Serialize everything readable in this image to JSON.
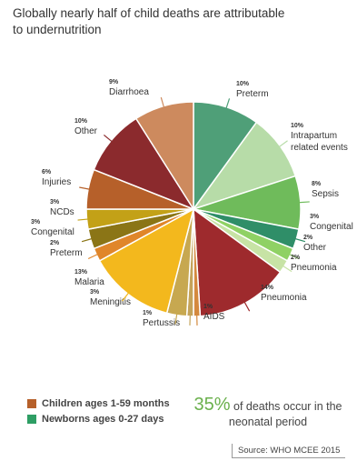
{
  "title": "Globally nearly half of child deaths are attributable to undernutrition",
  "legend": [
    {
      "label": "Children ages 1-59 months",
      "color": "#b6602a"
    },
    {
      "label": "Newborns ages 0-27 days",
      "color": "#2e9e64"
    }
  ],
  "callout": {
    "pct": "35%",
    "text": " of deaths occur in the neonatal period"
  },
  "source": "Source: WHO MCEE 2015",
  "chart_data": {
    "type": "pie",
    "slices": [
      {
        "label": "Preterm",
        "pct": "10%",
        "value": 10,
        "color": "#4f9f78"
      },
      {
        "label": "Intrapartum\nrelated events",
        "pct": "10%",
        "value": 10,
        "color": "#b7dca8"
      },
      {
        "label": "Sepsis",
        "pct": "8%",
        "value": 8,
        "color": "#6fbb5b"
      },
      {
        "label": "Congenital",
        "pct": "3%",
        "value": 3,
        "color": "#2f8e68"
      },
      {
        "label": "Other",
        "pct": "2%",
        "value": 2,
        "color": "#8fd164"
      },
      {
        "label": "Pneumonia",
        "pct": "2%",
        "value": 2,
        "color": "#c7e3a5"
      },
      {
        "label": "Pneumonia",
        "pct": "14%",
        "value": 14,
        "color": "#9e2a2d"
      },
      {
        "label": "AIDS",
        "pct": "1%",
        "value": 1,
        "color": "#d4893e"
      },
      {
        "label": "Pertussis",
        "pct": "1%",
        "value": 1,
        "color": "#c4a35a"
      },
      {
        "label": "Meningitis",
        "pct": "3%",
        "value": 3,
        "color": "#c7a850"
      },
      {
        "label": "Malaria",
        "pct": "13%",
        "value": 13,
        "color": "#f3b81d"
      },
      {
        "label": "Preterm",
        "pct": "2%",
        "value": 2,
        "color": "#e0862a"
      },
      {
        "label": "Congenital",
        "pct": "3%",
        "value": 3,
        "color": "#8b7516"
      },
      {
        "label": "NCDs",
        "pct": "3%",
        "value": 3,
        "color": "#c3a117"
      },
      {
        "label": "Injuries",
        "pct": "6%",
        "value": 6,
        "color": "#b6602a"
      },
      {
        "label": "Other",
        "pct": "10%",
        "value": 10,
        "color": "#8b2a2d"
      },
      {
        "label": "Diarrhoea",
        "pct": "9%",
        "value": 9,
        "color": "#cd8a5e"
      }
    ]
  }
}
